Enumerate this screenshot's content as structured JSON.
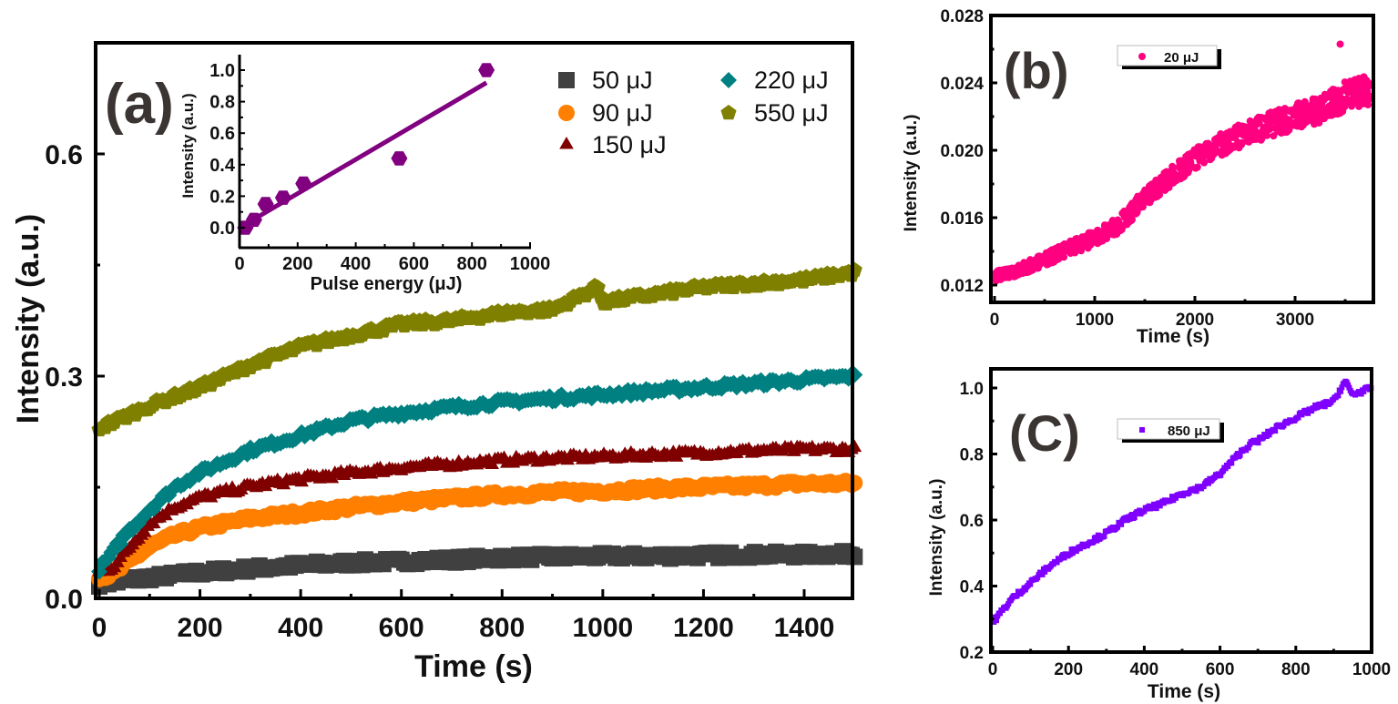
{
  "chart_data": [
    {
      "id": "a",
      "type": "scatter",
      "panel_label": "(a)",
      "xlabel": "Time (s)",
      "ylabel": "Intensity (a.u.)",
      "xlim": [
        -20,
        1500
      ],
      "ylim": [
        -0.01,
        0.75
      ],
      "xticks": [
        "0",
        "200",
        "400",
        "600",
        "800",
        "1000",
        "1200",
        "1400"
      ],
      "xtick_values": [
        0,
        200,
        400,
        600,
        800,
        1000,
        1200,
        1400
      ],
      "yticks": [
        "0.0",
        "0.3",
        "0.6"
      ],
      "ytick_values": [
        0.0,
        0.3,
        0.6
      ],
      "legend_position": "top-right",
      "series": [
        {
          "name": "50 μJ",
          "marker": "square",
          "color": "#404040",
          "x": [
            0,
            100,
            200,
            300,
            400,
            500,
            600,
            700,
            800,
            900,
            1000,
            1100,
            1200,
            1300,
            1400,
            1500
          ],
          "y": [
            0.02,
            0.028,
            0.035,
            0.04,
            0.045,
            0.048,
            0.05,
            0.052,
            0.055,
            0.056,
            0.057,
            0.057,
            0.058,
            0.059,
            0.059,
            0.06
          ]
        },
        {
          "name": "90 μJ",
          "marker": "circle",
          "color": "#ff7f00",
          "x": [
            0,
            25,
            50,
            100,
            150,
            200,
            300,
            400,
            500,
            600,
            700,
            800,
            900,
            1000,
            1100,
            1200,
            1300,
            1400,
            1500
          ],
          "y": [
            0.03,
            0.032,
            0.045,
            0.07,
            0.085,
            0.095,
            0.108,
            0.115,
            0.123,
            0.13,
            0.135,
            0.14,
            0.143,
            0.145,
            0.148,
            0.15,
            0.152,
            0.155,
            0.155
          ]
        },
        {
          "name": "150 μJ",
          "marker": "triangle",
          "color": "#800000",
          "x": [
            0,
            25,
            50,
            100,
            150,
            200,
            300,
            400,
            500,
            600,
            700,
            800,
            900,
            1000,
            1100,
            1200,
            1300,
            1400,
            1500
          ],
          "y": [
            0.035,
            0.04,
            0.06,
            0.1,
            0.122,
            0.135,
            0.15,
            0.16,
            0.168,
            0.175,
            0.18,
            0.185,
            0.188,
            0.19,
            0.193,
            0.195,
            0.198,
            0.2,
            0.2
          ]
        },
        {
          "name": "220 μJ",
          "marker": "diamond",
          "color": "#008080",
          "x": [
            0,
            25,
            50,
            100,
            150,
            200,
            300,
            400,
            500,
            600,
            700,
            800,
            900,
            1000,
            1100,
            1200,
            1300,
            1400,
            1500
          ],
          "y": [
            0.04,
            0.06,
            0.085,
            0.12,
            0.15,
            0.17,
            0.2,
            0.22,
            0.24,
            0.25,
            0.258,
            0.265,
            0.27,
            0.275,
            0.28,
            0.285,
            0.29,
            0.295,
            0.3
          ]
        },
        {
          "name": "550 μJ",
          "marker": "pentagon",
          "color": "#808000",
          "x": [
            0,
            100,
            200,
            300,
            400,
            500,
            600,
            700,
            800,
            900,
            990,
            1000,
            1100,
            1200,
            1300,
            1400,
            1500
          ],
          "y": [
            0.23,
            0.26,
            0.285,
            0.315,
            0.34,
            0.355,
            0.37,
            0.375,
            0.385,
            0.39,
            0.42,
            0.4,
            0.41,
            0.42,
            0.425,
            0.43,
            0.44
          ]
        }
      ],
      "inset": {
        "type": "scatter",
        "xlabel": "Pulse energy (μJ)",
        "ylabel": "Intensity (a.u.)",
        "xlim": [
          0,
          1000
        ],
        "ylim": [
          -0.1,
          1.1
        ],
        "xticks": [
          "0",
          "200",
          "400",
          "600",
          "800",
          "1000"
        ],
        "xtick_values": [
          0,
          200,
          400,
          600,
          800,
          1000
        ],
        "yticks": [
          "0.0",
          "0.2",
          "0.4",
          "0.6",
          "0.8",
          "1.0"
        ],
        "ytick_values": [
          0.0,
          0.2,
          0.4,
          0.6,
          0.8,
          1.0
        ],
        "marker": "hexagon",
        "color": "#800080",
        "x": [
          20,
          50,
          90,
          150,
          220,
          550,
          850
        ],
        "y": [
          0.0,
          0.05,
          0.15,
          0.19,
          0.28,
          0.44,
          1.0
        ],
        "fit_line": {
          "x": [
            0,
            850
          ],
          "y": [
            0.0,
            0.92
          ]
        }
      }
    },
    {
      "id": "b",
      "type": "scatter",
      "panel_label": "(b)",
      "xlabel": "Time (s)",
      "ylabel": "Intensity (a.u.)",
      "xlim": [
        -30,
        3790
      ],
      "ylim": [
        0.011,
        0.028
      ],
      "xticks": [
        "0",
        "1000",
        "2000",
        "3000"
      ],
      "xtick_values": [
        0,
        1000,
        2000,
        3000
      ],
      "yticks": [
        "0.012",
        "0.016",
        "0.020",
        "0.024",
        "0.028"
      ],
      "ytick_values": [
        0.012,
        0.016,
        0.02,
        0.024,
        0.028
      ],
      "legend_position": "top-left",
      "series": [
        {
          "name": "20 μJ",
          "marker": "circle",
          "color": "#ff0080",
          "trend_x": [
            0,
            250,
            500,
            750,
            1000,
            1250,
            1500,
            1750,
            2000,
            2250,
            2500,
            2750,
            3000,
            3250,
            3500,
            3750
          ],
          "trend_y": [
            0.0125,
            0.0129,
            0.0135,
            0.0142,
            0.0148,
            0.0156,
            0.0172,
            0.0184,
            0.0195,
            0.0203,
            0.021,
            0.0215,
            0.022,
            0.0224,
            0.0232,
            0.0236
          ]
        }
      ]
    },
    {
      "id": "c",
      "type": "scatter",
      "panel_label": "(C)",
      "xlabel": "Time (s)",
      "ylabel": "Intensity (a.u.)",
      "xlim": [
        0,
        1000
      ],
      "ylim": [
        0.2,
        1.06
      ],
      "xticks": [
        "0",
        "200",
        "400",
        "600",
        "800",
        "1000"
      ],
      "xtick_values": [
        0,
        200,
        400,
        600,
        800,
        1000
      ],
      "yticks": [
        "0.2",
        "0.4",
        "0.6",
        "0.8",
        "1.0"
      ],
      "ytick_values": [
        0.2,
        0.4,
        0.6,
        0.8,
        1.0
      ],
      "legend_position": "top-left",
      "series": [
        {
          "name": "850 μJ",
          "marker": "square",
          "color": "#8000ff",
          "x": [
            0,
            50,
            100,
            150,
            200,
            250,
            300,
            350,
            400,
            450,
            500,
            550,
            600,
            650,
            680,
            700,
            750,
            800,
            850,
            900,
            930,
            950,
            1000
          ],
          "y": [
            0.29,
            0.36,
            0.41,
            0.46,
            0.5,
            0.53,
            0.56,
            0.6,
            0.63,
            0.65,
            0.68,
            0.7,
            0.74,
            0.8,
            0.83,
            0.84,
            0.88,
            0.91,
            0.94,
            0.96,
            1.02,
            0.98,
            1.0
          ]
        }
      ]
    }
  ]
}
